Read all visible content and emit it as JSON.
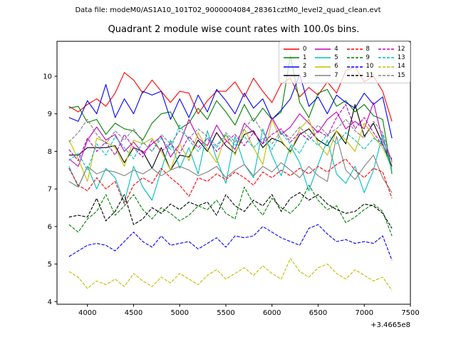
{
  "header": {
    "datafile": "Data file: modeM0/AS1A10_101T02_9000004084_28361cztM0_level2_quad_clean.evt"
  },
  "chart_data": {
    "type": "line",
    "title": "Quadrant 2 module wise count rates with 100.0s bins.",
    "xlabel": "",
    "ylabel": "",
    "x_offset_label": "+3.4665e8",
    "xlim": [
      3670,
      7500
    ],
    "ylim": [
      3.93,
      10.93
    ],
    "xticks": [
      4000,
      4500,
      5000,
      5500,
      6000,
      6500,
      7000,
      7500
    ],
    "yticks": [
      4,
      5,
      6,
      7,
      8,
      9,
      10
    ],
    "grid": false,
    "legend_position": "upper right",
    "legend_columns": 4,
    "x": [
      3800,
      3900,
      4000,
      4100,
      4200,
      4300,
      4400,
      4500,
      4600,
      4700,
      4800,
      4900,
      5000,
      5100,
      5200,
      5300,
      5400,
      5500,
      5600,
      5700,
      5800,
      5900,
      6000,
      6100,
      6200,
      6300,
      6400,
      6500,
      6600,
      6700,
      6800,
      6900,
      7000,
      7100,
      7200,
      7300
    ],
    "series": [
      {
        "name": "0",
        "color": "#ff0000",
        "dashed": false,
        "values": [
          9.2,
          9.05,
          9.25,
          9.4,
          9.2,
          9.55,
          10.1,
          9.9,
          9.55,
          9.9,
          9.6,
          9.3,
          9.6,
          9.55,
          9.0,
          9.35,
          9.6,
          9.6,
          9.85,
          9.45,
          9.95,
          9.6,
          9.3,
          9.8,
          9.95,
          9.45,
          9.7,
          9.5,
          9.85,
          9.55,
          10.15,
          10.25,
          9.85,
          10.0,
          9.6,
          8.8
        ]
      },
      {
        "name": "1",
        "color": "#008000",
        "dashed": false,
        "values": [
          9.15,
          9.2,
          8.77,
          8.85,
          8.45,
          8.75,
          8.6,
          8.55,
          8.3,
          8.75,
          9.0,
          9.05,
          8.6,
          8.75,
          9.15,
          8.85,
          9.35,
          9.05,
          8.7,
          9.25,
          8.8,
          9.15,
          8.85,
          9.05,
          10.55,
          9.3,
          8.9,
          9.55,
          9.65,
          9.2,
          9.35,
          9.05,
          9.25,
          8.95,
          8.85,
          7.4
        ]
      },
      {
        "name": "2",
        "color": "#0000ff",
        "dashed": false,
        "values": [
          8.9,
          8.8,
          9.35,
          9.0,
          9.78,
          8.9,
          9.4,
          9.0,
          9.6,
          9.5,
          9.6,
          8.85,
          9.4,
          8.9,
          9.5,
          9.05,
          9.65,
          9.35,
          9.0,
          9.55,
          9.15,
          9.4,
          8.85,
          9.1,
          9.4,
          10.05,
          9.2,
          9.45,
          9.0,
          9.5,
          9.3,
          9.15,
          9.55,
          9.25,
          9.45,
          8.35
        ]
      },
      {
        "name": "3",
        "color": "#000000",
        "dashed": false,
        "values": [
          7.9,
          7.9,
          8.1,
          8.1,
          8.1,
          8.15,
          7.7,
          8.1,
          8.0,
          7.55,
          8.1,
          7.5,
          7.9,
          7.85,
          8.3,
          8.0,
          8.5,
          8.15,
          7.95,
          8.45,
          8.55,
          8.1,
          8.35,
          8.25,
          8.0,
          8.45,
          8.6,
          8.3,
          8.15,
          8.55,
          8.2,
          9.25,
          8.4,
          8.75,
          8.2,
          7.6
        ]
      },
      {
        "name": "4",
        "color": "#bf00bf",
        "dashed": false,
        "values": [
          7.8,
          7.6,
          8.3,
          8.65,
          8.3,
          8.45,
          8.0,
          8.25,
          7.95,
          8.2,
          8.4,
          7.85,
          8.2,
          8.85,
          8.35,
          8.15,
          8.7,
          8.3,
          8.05,
          8.75,
          8.5,
          8.2,
          8.9,
          8.45,
          8.65,
          9.0,
          8.75,
          8.5,
          8.85,
          9.05,
          8.6,
          8.8,
          8.6,
          9.3,
          8.3,
          7.75
        ]
      },
      {
        "name": "5",
        "color": "#00bfbf",
        "dashed": false,
        "values": [
          7.6,
          7.05,
          7.6,
          7.0,
          7.55,
          7.3,
          6.65,
          7.6,
          7.05,
          6.7,
          7.5,
          8.3,
          7.55,
          8.1,
          7.4,
          8.55,
          7.8,
          7.15,
          8.4,
          7.65,
          7.3,
          8.6,
          7.9,
          7.35,
          8.15,
          7.7,
          6.95,
          7.65,
          8.3,
          7.4,
          7.15,
          7.6,
          6.9,
          7.5,
          8.45,
          7.45
        ]
      },
      {
        "name": "6",
        "color": "#bfbf00",
        "dashed": false,
        "values": [
          8.3,
          7.8,
          7.2,
          8.35,
          8.25,
          8.1,
          7.6,
          8.3,
          8.2,
          8.35,
          8.0,
          7.5,
          8.2,
          7.75,
          8.5,
          8.05,
          7.7,
          8.45,
          7.9,
          8.6,
          8.1,
          7.65,
          8.85,
          8.3,
          7.95,
          8.6,
          8.85,
          8.2,
          7.9,
          8.55,
          8.3,
          8.0,
          8.75,
          8.4,
          8.1,
          7.55
        ]
      },
      {
        "name": "7",
        "color": "#808080",
        "dashed": false,
        "values": [
          7.2,
          7.05,
          7.6,
          7.4,
          7.5,
          7.45,
          7.35,
          7.5,
          7.4,
          7.55,
          7.35,
          7.5,
          7.6,
          7.5,
          7.35,
          7.45,
          7.6,
          7.3,
          7.5,
          7.65,
          7.35,
          7.6,
          7.45,
          7.7,
          7.5,
          7.3,
          7.6,
          7.35,
          7.2,
          8.4,
          7.5,
          7.25,
          7.6,
          7.9,
          7.3,
          6.9
        ]
      },
      {
        "name": "8",
        "color": "#ff0000",
        "dashed": true,
        "values": [
          7.55,
          7.1,
          6.95,
          7.3,
          7.0,
          7.2,
          6.6,
          7.1,
          7.3,
          7.15,
          7.55,
          7.3,
          7.1,
          6.8,
          7.3,
          7.2,
          7.4,
          7.25,
          7.45,
          7.3,
          7.1,
          7.45,
          7.3,
          7.5,
          7.35,
          7.55,
          7.4,
          7.6,
          7.45,
          7.65,
          7.8,
          7.5,
          7.3,
          7.55,
          7.45,
          6.75
        ]
      },
      {
        "name": "9",
        "color": "#008000",
        "dashed": true,
        "values": [
          6.05,
          5.85,
          6.2,
          6.4,
          6.85,
          6.3,
          6.55,
          6.85,
          6.45,
          6.2,
          6.5,
          6.35,
          6.15,
          6.3,
          6.55,
          6.45,
          6.7,
          6.35,
          6.2,
          7.05,
          6.6,
          6.3,
          6.75,
          6.5,
          6.35,
          6.6,
          7.1,
          6.7,
          6.45,
          6.55,
          6.1,
          6.25,
          6.45,
          6.6,
          6.4,
          5.75
        ]
      },
      {
        "name": "10",
        "color": "#0000ff",
        "dashed": true,
        "values": [
          5.2,
          5.35,
          5.5,
          5.55,
          5.5,
          5.35,
          5.6,
          5.85,
          5.6,
          5.45,
          5.75,
          5.5,
          5.55,
          5.6,
          5.4,
          5.55,
          5.7,
          5.45,
          5.75,
          5.7,
          5.75,
          6.0,
          5.85,
          5.7,
          5.6,
          5.5,
          5.95,
          6.05,
          5.8,
          5.6,
          5.65,
          5.55,
          5.6,
          5.55,
          5.75,
          5.1
        ]
      },
      {
        "name": "11",
        "color": "#000000",
        "dashed": true,
        "values": [
          6.25,
          6.3,
          6.25,
          6.75,
          6.15,
          6.4,
          6.85,
          6.05,
          6.2,
          6.5,
          6.35,
          6.6,
          6.45,
          6.65,
          6.55,
          6.65,
          6.3,
          6.85,
          6.55,
          6.4,
          6.7,
          6.55,
          6.85,
          6.4,
          6.75,
          6.9,
          6.7,
          6.85,
          6.6,
          6.45,
          6.35,
          6.4,
          6.6,
          6.55,
          6.35,
          5.95
        ]
      },
      {
        "name": "12",
        "color": "#bf00bf",
        "dashed": true,
        "values": [
          8.05,
          7.75,
          8.35,
          8.0,
          8.25,
          7.9,
          8.45,
          8.1,
          7.85,
          8.3,
          8.0,
          8.2,
          7.95,
          8.4,
          8.1,
          8.35,
          8.0,
          8.25,
          8.45,
          8.15,
          8.5,
          8.2,
          8.45,
          8.6,
          8.25,
          8.5,
          8.3,
          8.55,
          8.4,
          8.9,
          9.25,
          8.6,
          8.9,
          8.5,
          8.15,
          7.8
        ]
      },
      {
        "name": "13",
        "color": "#00bfbf",
        "dashed": true,
        "values": [
          7.75,
          7.95,
          7.5,
          8.2,
          7.9,
          8.4,
          8.1,
          7.8,
          8.25,
          8.0,
          8.35,
          8.05,
          8.7,
          8.3,
          8.0,
          8.35,
          8.1,
          8.45,
          8.15,
          8.4,
          8.1,
          8.35,
          8.05,
          8.5,
          8.2,
          7.95,
          8.4,
          8.15,
          8.45,
          8.2,
          8.5,
          8.3,
          8.05,
          8.35,
          8.2,
          7.5
        ]
      },
      {
        "name": "14",
        "color": "#bfbf00",
        "dashed": true,
        "values": [
          4.8,
          4.65,
          4.35,
          4.55,
          4.45,
          4.6,
          4.4,
          4.75,
          4.55,
          4.4,
          4.65,
          4.5,
          4.75,
          4.6,
          4.45,
          4.7,
          4.85,
          4.6,
          4.75,
          4.9,
          4.7,
          4.95,
          4.75,
          4.6,
          5.15,
          4.8,
          4.65,
          4.9,
          5.0,
          4.75,
          4.6,
          4.85,
          4.7,
          4.55,
          4.65,
          4.3
        ]
      },
      {
        "name": "15",
        "color": "#808080",
        "dashed": true,
        "values": [
          8.25,
          8.5,
          8.85,
          8.45,
          8.2,
          8.55,
          8.3,
          8.6,
          8.25,
          8.0,
          8.45,
          8.2,
          8.55,
          8.35,
          8.6,
          8.4,
          8.15,
          8.5,
          8.25,
          8.6,
          8.9,
          8.5,
          8.2,
          8.55,
          8.35,
          8.65,
          8.4,
          8.7,
          8.45,
          8.6,
          8.85,
          8.55,
          8.35,
          8.8,
          8.5,
          7.7
        ]
      }
    ]
  }
}
